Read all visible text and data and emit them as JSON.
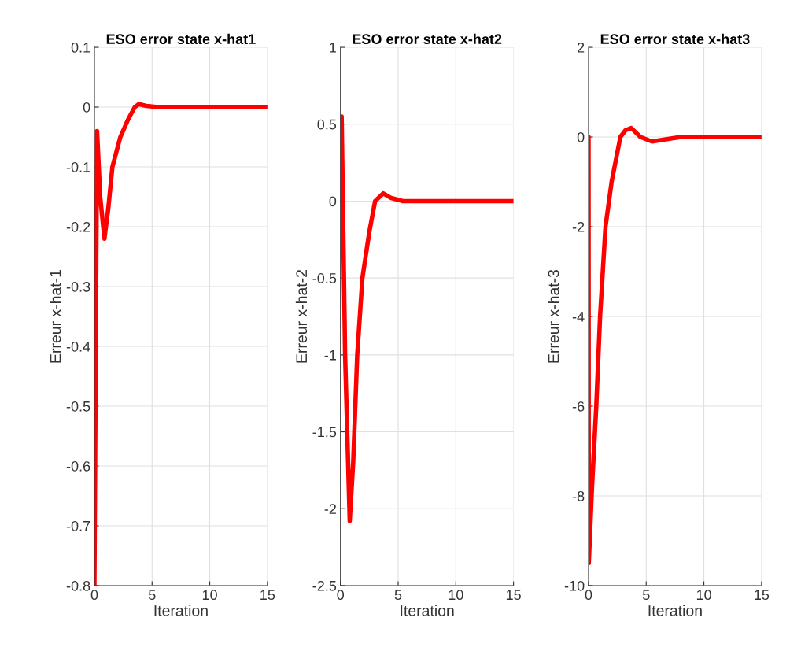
{
  "chart_data": [
    {
      "type": "line",
      "title": "ESO error state x-hat1",
      "xlabel": "Iteration",
      "ylabel": "Erreur x-hat-1",
      "grid": true,
      "xlim": [
        0,
        15
      ],
      "xticks": [
        0,
        5,
        10,
        15
      ],
      "ylim": [
        -0.8,
        0.1
      ],
      "yticks": [
        0.1,
        0,
        {
          "value": -0.1,
          "label": "-0.1"
        },
        {
          "value": -0.2,
          "label": "-0.2"
        },
        {
          "value": -0.3,
          "label": "-0.3"
        },
        {
          "value": -0.4,
          "label": "-0.4"
        },
        {
          "value": -0.5,
          "label": "-0.5"
        },
        {
          "value": -0.6,
          "label": "-0.6"
        },
        {
          "value": -0.7,
          "label": "-0.7"
        },
        {
          "value": -0.8,
          "label": "-0.8"
        }
      ],
      "series": [
        {
          "color": "#ff0000",
          "x": [
            0,
            0.23,
            0.5,
            0.87,
            1.2,
            1.56,
            2.25,
            2.94,
            3.5,
            3.85,
            4.5,
            5.5,
            8,
            12,
            15
          ],
          "values": [
            -0.8,
            -0.04,
            -0.15,
            -0.22,
            -0.17,
            -0.1,
            -0.05,
            -0.02,
            0,
            0.005,
            0.002,
            0,
            0,
            0,
            0
          ]
        }
      ]
    },
    {
      "type": "line",
      "title": "ESO error state x-hat2",
      "xlabel": "Iteration",
      "ylabel": "Erreur x-hat-2",
      "grid": true,
      "xlim": [
        0,
        15
      ],
      "xticks": [
        0,
        5,
        10,
        15
      ],
      "ylim": [
        -2.5,
        1
      ],
      "yticks": [
        1,
        0.5,
        0,
        {
          "value": -0.5,
          "label": "-0.5"
        },
        {
          "value": -1,
          "label": "-1"
        },
        {
          "value": -1.5,
          "label": "-1.5"
        },
        {
          "value": -2,
          "label": "-2"
        },
        {
          "value": -2.5,
          "label": "-2.5"
        }
      ],
      "series": [
        {
          "color": "#ff0000",
          "x": [
            0,
            0.1,
            0.4,
            0.8,
            1.1,
            1.45,
            1.9,
            2.5,
            3.0,
            3.7,
            4.4,
            5.4,
            8,
            12,
            15
          ],
          "values": [
            0,
            0.55,
            -1.0,
            -2.08,
            -1.7,
            -1.0,
            -0.5,
            -0.2,
            0,
            0.05,
            0.02,
            0,
            0,
            0,
            0
          ]
        }
      ]
    },
    {
      "type": "line",
      "title": "ESO error state x-hat3",
      "xlabel": "Iteration",
      "ylabel": "Erreur x-hat-3",
      "grid": true,
      "xlim": [
        0,
        15
      ],
      "xticks": [
        0,
        5,
        10,
        15
      ],
      "ylim": [
        -10,
        2
      ],
      "yticks": [
        2,
        0,
        {
          "value": -2,
          "label": "-2"
        },
        {
          "value": -4,
          "label": "-4"
        },
        {
          "value": -6,
          "label": "-6"
        },
        {
          "value": -8,
          "label": "-8"
        },
        {
          "value": -10,
          "label": "-10"
        }
      ],
      "series": [
        {
          "color": "#ff0000",
          "x": [
            0,
            0.02,
            0.3,
            0.67,
            1.0,
            1.47,
            2.0,
            2.76,
            3.2,
            3.7,
            4.5,
            5.5,
            8,
            12,
            15
          ],
          "values": [
            0,
            -9.5,
            -7.8,
            -6,
            -4,
            -2,
            -1,
            0,
            0.15,
            0.2,
            0,
            -0.1,
            0,
            0,
            0
          ]
        }
      ]
    }
  ]
}
